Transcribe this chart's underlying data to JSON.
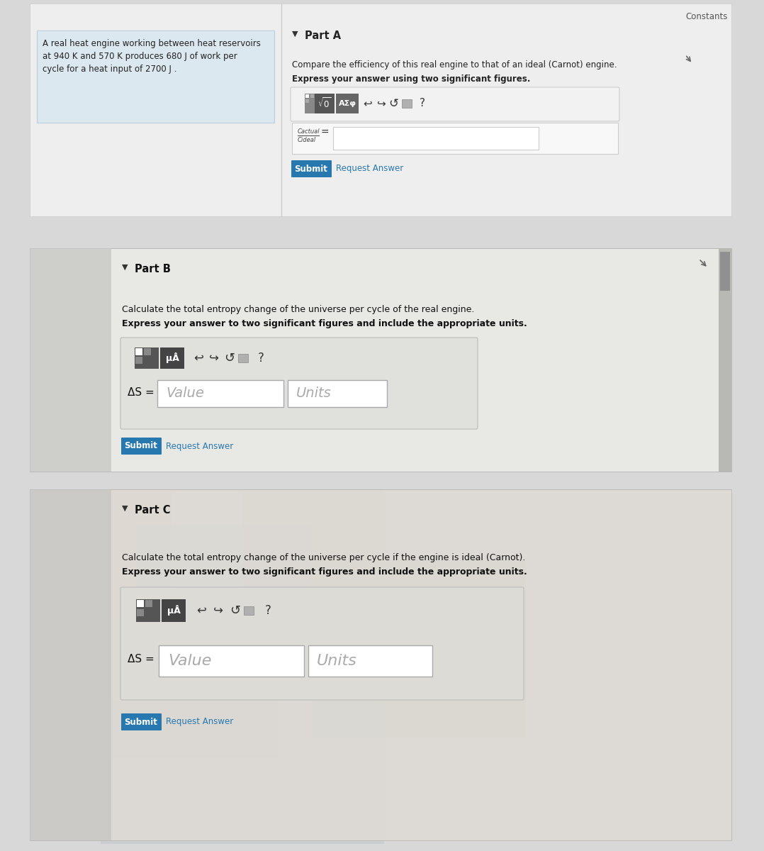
{
  "bg_outer": "#b0b0b0",
  "bg_inner": "#d8d8d8",
  "panel_white": "#f0f0f0",
  "panel_light": "#e8e8e8",
  "left_box_color": "#dce8f0",
  "white": "#ffffff",
  "constants_text": "Constants",
  "part_a_left_text_line1": "A real heat engine working between heat reservoirs",
  "part_a_left_text_line2": "at 940 K and 570 K produces 680 J of work per",
  "part_a_left_text_line3": "cycle for a heat input of 2700 J .",
  "part_a_title": "Part A",
  "part_a_q1": "Compare the efficiency of this real engine to that of an ideal (Carnot) engine.",
  "part_a_q2": "Express your answer using two significant figures.",
  "part_a_frac_top": "Cactual",
  "part_a_frac_bot": "Cideal",
  "part_b_title": "Part B",
  "part_b_q1": "Calculate the total entropy change of the universe per cycle of the real engine.",
  "part_b_q2": "Express your answer to two significant figures and include the appropriate units.",
  "part_b_delta_s": "ΔS =",
  "part_b_value": "Value",
  "part_b_units": "Units",
  "part_c_title": "Part C",
  "part_c_q1": "Calculate the total entropy change of the universe per cycle if the engine is ideal (Carnot).",
  "part_c_q2": "Express your answer to two significant figures and include the appropriate units.",
  "part_c_delta_s": "ΔS =",
  "part_c_value": "Value",
  "part_c_units": "Units",
  "submit_bg": "#2878b0",
  "submit_fg": "#ffffff",
  "req_ans_color": "#2878b0",
  "btn_dark": "#4a4a4a",
  "btn_mid": "#666666",
  "scrollbar_bg": "#a0a0a0",
  "scrollbar_thumb": "#808080"
}
